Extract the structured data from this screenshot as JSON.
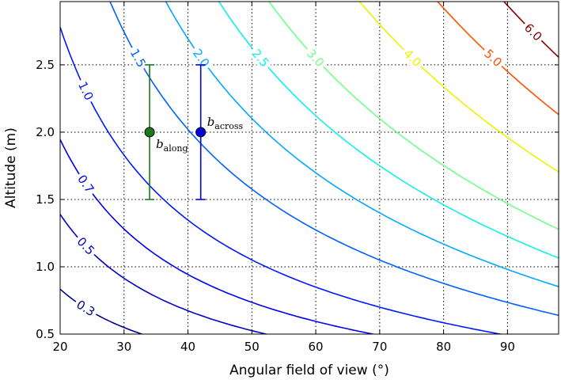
{
  "chart_data": {
    "type": "contour",
    "title": "",
    "xlabel": "Angular field of view (°)",
    "ylabel": "Altitude (m)",
    "xlim": [
      20,
      98
    ],
    "ylim": [
      0.5,
      2.97
    ],
    "x_ticks": [
      "20",
      "30",
      "40",
      "50",
      "60",
      "70",
      "80",
      "90"
    ],
    "y_ticks": [
      "0.5",
      "1.0",
      "1.5",
      "2.0",
      "2.5"
    ],
    "grid": "dotted",
    "contours": [
      {
        "level": 0.3,
        "label": "0.3",
        "color": "#00008f"
      },
      {
        "level": 0.5,
        "label": "0.5",
        "color": "#0000c8"
      },
      {
        "level": 0.7,
        "label": "0.7",
        "color": "#0000f0"
      },
      {
        "level": 1.0,
        "label": "1.0",
        "color": "#0018ff"
      },
      {
        "level": 1.5,
        "label": "1.5",
        "color": "#0060ff"
      },
      {
        "level": 2.0,
        "label": "2.0",
        "color": "#00a8ff"
      },
      {
        "level": 2.5,
        "label": "2.5",
        "color": "#10f0e8"
      },
      {
        "level": 3.0,
        "label": "3.0",
        "color": "#70ff88"
      },
      {
        "level": 4.0,
        "label": "4.0",
        "color": "#f0f000"
      },
      {
        "level": 5.0,
        "label": "5.0",
        "color": "#ff5000"
      },
      {
        "level": 6.0,
        "label": "6.0",
        "color": "#800000"
      }
    ],
    "points": [
      {
        "name": "b",
        "subscript": "along",
        "x": 34,
        "y": 2.0,
        "y_range": [
          1.5,
          2.5
        ],
        "color": "#1a7a1a"
      },
      {
        "name": "b",
        "subscript": "across",
        "x": 42,
        "y": 2.0,
        "y_range": [
          1.5,
          2.5
        ],
        "color": "#0000e0"
      }
    ]
  }
}
